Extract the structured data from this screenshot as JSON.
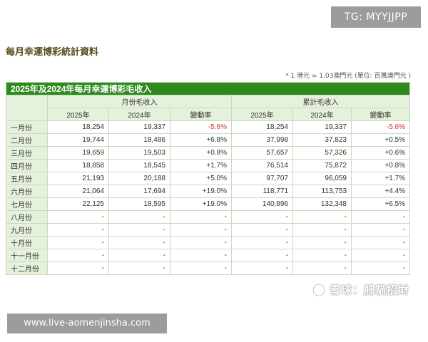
{
  "badge": {
    "text": "TG: MYYJJPP"
  },
  "title": "每月幸運博彩統計資料",
  "note": "* 1 港元 = 1.03澳門元 (單位: 百萬澳門元 )",
  "table": {
    "caption": "2025年及2024年每月幸運博彩毛收入",
    "groups": {
      "monthly": "月份毛收入",
      "cumulative": "累計毛收入"
    },
    "columns": [
      "2025年",
      "2024年",
      "變動率",
      "2025年",
      "2024年",
      "變動率"
    ],
    "rows": [
      {
        "month": "一月份",
        "cells": [
          "18,254",
          "19,337",
          "-5.6%",
          "18,254",
          "19,337",
          "-5.6%"
        ]
      },
      {
        "month": "二月份",
        "cells": [
          "19,744",
          "18,486",
          "+6.8%",
          "37,998",
          "37,823",
          "+0.5%"
        ]
      },
      {
        "month": "三月份",
        "cells": [
          "19,659",
          "19,503",
          "+0.8%",
          "57,657",
          "57,326",
          "+0.6%"
        ]
      },
      {
        "month": "四月份",
        "cells": [
          "18,858",
          "18,545",
          "+1.7%",
          "76,514",
          "75,872",
          "+0.8%"
        ]
      },
      {
        "month": "五月份",
        "cells": [
          "21,193",
          "20,188",
          "+5.0%",
          "97,707",
          "96,059",
          "+1.7%"
        ]
      },
      {
        "month": "六月份",
        "cells": [
          "21,064",
          "17,694",
          "+19.0%",
          "118,771",
          "113,753",
          "+4.4%"
        ]
      },
      {
        "month": "七月份",
        "cells": [
          "22,125",
          "18,595",
          "+19.0%",
          "140,896",
          "132,348",
          "+6.5%"
        ]
      },
      {
        "month": "八月份",
        "cells": [
          "-",
          "-",
          "-",
          "-",
          "-",
          "-"
        ]
      },
      {
        "month": "九月份",
        "cells": [
          "-",
          "-",
          "-",
          "-",
          "-",
          "-"
        ]
      },
      {
        "month": "十月份",
        "cells": [
          "-",
          "-",
          "-",
          "-",
          "-",
          "-"
        ]
      },
      {
        "month": "十一月份",
        "cells": [
          "-",
          "-",
          "-",
          "-",
          "-",
          "-"
        ]
      },
      {
        "month": "十二月份",
        "cells": [
          "-",
          "-",
          "-",
          "-",
          "-",
          "-"
        ]
      }
    ]
  },
  "watermark": {
    "text": "雪球：肥貓招財",
    "icon": "snowball-logo-icon"
  },
  "url_banner": {
    "text": "www.live-aomenjinsha.com"
  },
  "colors": {
    "header_green": "#2d8b1e",
    "light_green": "#e6f1dc",
    "negative_red": "#d0312d",
    "badge_gray": "#9c9c9c"
  }
}
